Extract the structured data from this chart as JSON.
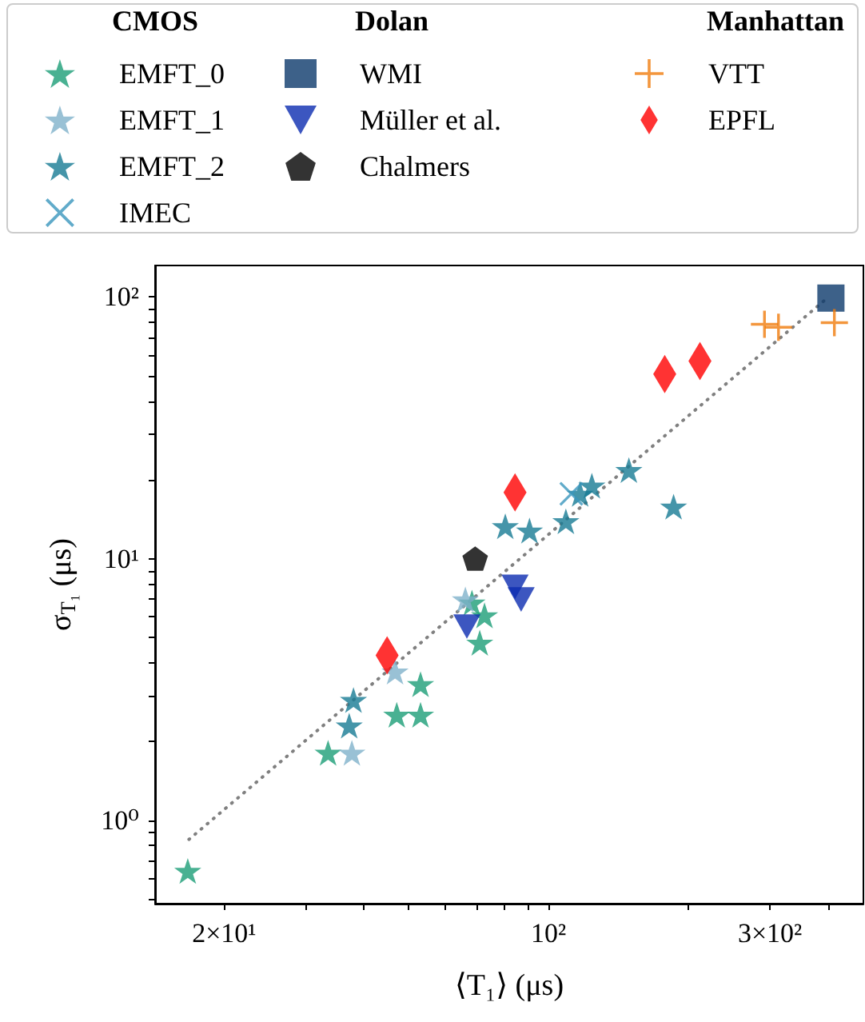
{
  "chart_data": {
    "type": "scatter",
    "xlabel": "⟨T₁⟩ (μs)",
    "ylabel": "σ$_{T₁}$ (μs)",
    "legend_title": [
      "CMOS",
      "Dolan",
      "Manhattan"
    ],
    "log": "xy",
    "grid": false,
    "legend": "top",
    "xlim": [
      14.2,
      477
    ],
    "ylim": [
      0.48,
      132
    ],
    "xticks": [
      {
        "value": 20,
        "label": "2×10¹"
      },
      {
        "value": 30,
        "label": null
      },
      {
        "value": 40,
        "label": null
      },
      {
        "value": 50,
        "label": null
      },
      {
        "value": 60,
        "label": null
      },
      {
        "value": 70,
        "label": null
      },
      {
        "value": 80,
        "label": null
      },
      {
        "value": 90,
        "label": null
      },
      {
        "value": 100,
        "label": "10²"
      },
      {
        "value": 200,
        "label": null
      },
      {
        "value": 300,
        "label": "3×10²"
      },
      {
        "value": 400,
        "label": null
      }
    ],
    "yticks": [
      {
        "value": 0.5,
        "label": null
      },
      {
        "value": 0.6,
        "label": null
      },
      {
        "value": 0.7,
        "label": null
      },
      {
        "value": 0.8,
        "label": null
      },
      {
        "value": 0.9,
        "label": null
      },
      {
        "value": 1,
        "label": "10⁰"
      },
      {
        "value": 2,
        "label": null
      },
      {
        "value": 3,
        "label": null
      },
      {
        "value": 4,
        "label": null
      },
      {
        "value": 5,
        "label": null
      },
      {
        "value": 6,
        "label": null
      },
      {
        "value": 7,
        "label": null
      },
      {
        "value": 8,
        "label": null
      },
      {
        "value": 9,
        "label": null
      },
      {
        "value": 10,
        "label": "10¹"
      },
      {
        "value": 20,
        "label": null
      },
      {
        "value": 30,
        "label": null
      },
      {
        "value": 40,
        "label": null
      },
      {
        "value": 50,
        "label": null
      },
      {
        "value": 60,
        "label": null
      },
      {
        "value": 70,
        "label": null
      },
      {
        "value": 80,
        "label": null
      },
      {
        "value": 90,
        "label": null
      },
      {
        "value": 100,
        "label": "10²"
      }
    ],
    "series": [
      {
        "type": "line",
        "color": "#808080",
        "line_style": "dotted",
        "marker": "none",
        "x": [
          16.8,
          401
        ],
        "values": [
          0.845,
          100
        ]
      },
      {
        "name": "EMFT_0",
        "color": "#1b9e77",
        "marker": "star",
        "x": [
          16.7,
          33.5,
          47.1,
          53.0,
          53.0,
          71.1,
          72.8,
          68.4
        ],
        "values": [
          0.64,
          1.81,
          2.53,
          2.53,
          3.31,
          4.77,
          6.07,
          6.79
        ]
      },
      {
        "name": "EMFT_1",
        "color": "#7fb2ca",
        "marker": "star",
        "x": [
          37.7,
          46.7,
          66.2
        ],
        "values": [
          1.81,
          3.7,
          6.98
        ]
      },
      {
        "name": "EMFT_2",
        "color": "#167b94",
        "marker": "star",
        "x": [
          38.0,
          37.2,
          80.7,
          91.0,
          109,
          117,
          124,
          149,
          186
        ],
        "values": [
          2.88,
          2.3,
          13.3,
          12.8,
          13.9,
          17.7,
          19.0,
          21.8,
          15.8
        ]
      },
      {
        "name": "IMEC",
        "color": "#3a96bd",
        "marker": "cross",
        "x": [
          112
        ],
        "values": [
          17.7
        ]
      },
      {
        "name": "WMI",
        "color": "#0d3a6b",
        "marker": "square",
        "x": [
          406
        ],
        "values": [
          99
        ]
      },
      {
        "name": "Müller et al.",
        "color": "#0b2cb0",
        "marker": "triangle_down",
        "x": [
          66.7,
          84.7,
          87.3
        ],
        "values": [
          5.5,
          7.8,
          6.98
        ]
      },
      {
        "name": "Chalmers",
        "color": "#000000",
        "x": [
          69.5
        ],
        "values": [
          10
        ]
      },
      {
        "name": "VTT",
        "color": "#f07c0c",
        "marker": "plus",
        "x": [
          292,
          313,
          413
        ],
        "values": [
          78.7,
          76.6,
          79.8
        ]
      },
      {
        "name": "EPFL",
        "color": "#ff0000",
        "marker": "diamond",
        "x": [
          44.9,
          84.7,
          178,
          212
        ],
        "values": [
          4.27,
          17.9,
          50.8,
          56.9
        ]
      }
    ]
  }
}
